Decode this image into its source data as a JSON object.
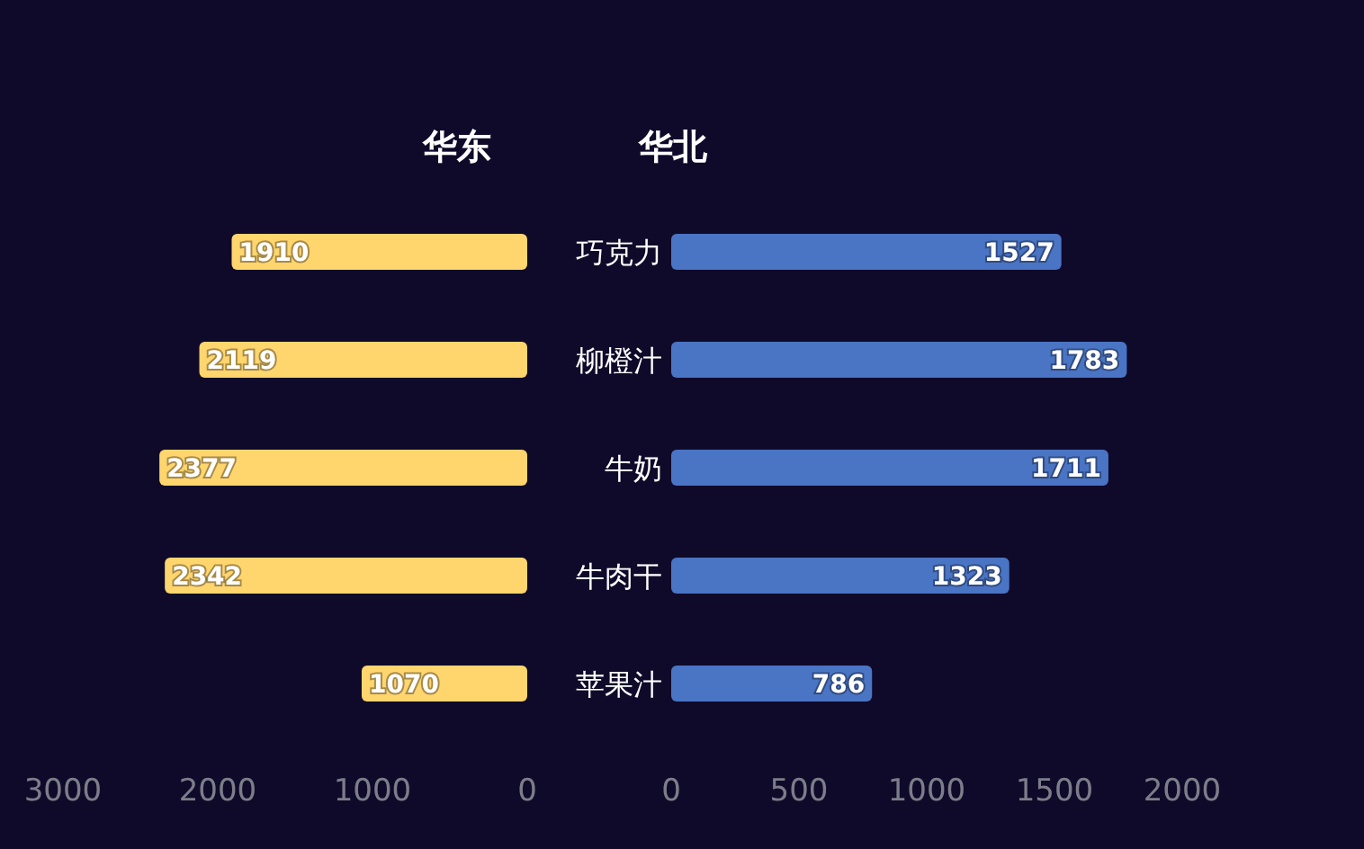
{
  "chart_data": [
    {
      "type": "bar",
      "orientation": "horizontal",
      "title": "华东",
      "categories": [
        "巧克力",
        "柳橙汁",
        "牛奶",
        "牛肉干",
        "苹果汁"
      ],
      "tick_labels": "x",
      "values": [
        1910,
        2119,
        2377,
        2342,
        1070
      ],
      "color": "#ffd56e",
      "xlim": [
        3000,
        0
      ],
      "xticks": [
        3000,
        2000,
        1000,
        0
      ],
      "data_labels": true
    },
    {
      "type": "bar",
      "orientation": "horizontal",
      "title": "华北",
      "categories": [
        "巧克力",
        "柳橙汁",
        "牛奶",
        "牛肉干",
        "苹果汁"
      ],
      "values": [
        1527,
        1783,
        1711,
        1323,
        786
      ],
      "color": "#4a74c4",
      "xlim": [
        0,
        2000
      ],
      "xticks": [
        0,
        500,
        1000,
        1500,
        2000
      ],
      "data_labels": true
    }
  ]
}
